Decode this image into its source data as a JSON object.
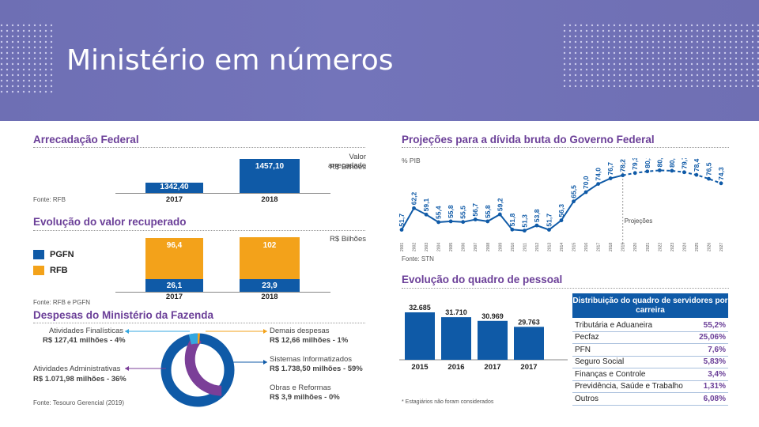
{
  "header": {
    "title": "Ministério em números"
  },
  "arrecadacao": {
    "title": "Arrecadação Federal",
    "legend_title": "Valor arrecadado",
    "legend_unit": "R$ Bilhões",
    "bars": [
      {
        "year": "2017",
        "label": "1342,40",
        "value": 1342.4
      },
      {
        "year": "2018",
        "label": "1457,10",
        "value": 1457.1
      }
    ],
    "source": "Fonte: RFB"
  },
  "recuperado": {
    "title": "Evolução do valor recuperado",
    "unit": "R$ Bilhões",
    "legend": [
      {
        "name": "PGFN",
        "color": "#0f5aa7"
      },
      {
        "name": "RFB",
        "color": "#f3a21a"
      }
    ],
    "bars": [
      {
        "year": "2017",
        "pgfn_label": "26,1",
        "pgfn": 26.1,
        "rfb_label": "96,4",
        "rfb": 96.4
      },
      {
        "year": "2018",
        "pgfn_label": "23,9",
        "pgfn": 23.9,
        "rfb_label": "102",
        "rfb": 102
      }
    ],
    "source": "Fonte: RFB e PGFN"
  },
  "despesas": {
    "title": "Despesas do Ministério da Fazenda",
    "items": [
      {
        "name": "Atividades Finalísticas",
        "value": "R$ 127,41 milhões - 4%",
        "share": 4
      },
      {
        "name": "Atividades Administrativas",
        "value": "R$ 1.071,98 milhões - 36%",
        "share": 36
      },
      {
        "name": "Demais despesas",
        "value": "R$ 12,66 milhões - 1%",
        "share": 1
      },
      {
        "name": "Sistemas Informatizados",
        "value": "R$ 1.738,50 milhões - 59%",
        "share": 59
      },
      {
        "name": "Obras e Reformas",
        "value": "R$ 3,9 milhões - 0%",
        "share": 0
      }
    ],
    "colors": {
      "finalisticas": "#34a7e0",
      "administrativas": "#7b3f98",
      "demais": "#f3a21a",
      "sistemas": "#0f5aa7"
    },
    "source": "Fonte: Tesouro Gerencial (2019)"
  },
  "divida": {
    "title": "Projeções para a dívida bruta do Governo Federal",
    "ylabel": "% PIB",
    "projection_label": "Projeções",
    "source": "Fonte: STN",
    "chart_data": {
      "type": "line",
      "title": "Projeções para a dívida bruta do Governo Federal",
      "ylabel": "% PIB",
      "x": [
        "2001",
        "2002",
        "2003",
        "2004",
        "2005",
        "2006",
        "2007",
        "2008",
        "2009",
        "2010",
        "2011",
        "2012",
        "2013",
        "2014",
        "2015",
        "2016",
        "2017",
        "2018",
        "2019",
        "2020",
        "2021",
        "2022",
        "2023",
        "2024",
        "2025",
        "2026",
        "2027"
      ],
      "values": [
        51.7,
        62.2,
        59.1,
        55.4,
        55.8,
        55.5,
        56.7,
        55.8,
        59.2,
        51.8,
        51.3,
        53.8,
        51.7,
        56.3,
        65.5,
        70.0,
        74.0,
        76.7,
        78.2,
        79.3,
        80.1,
        80.6,
        80.4,
        79.7,
        78.4,
        76.5,
        74.3
      ],
      "labels": [
        "51,7",
        "62,2",
        "59,1",
        "55,4",
        "55,8",
        "55,5",
        "56,7",
        "55,8",
        "59,2",
        "51,8",
        "51,3",
        "53,8",
        "51,7",
        "56,3",
        "65,5",
        "70,0",
        "74,0",
        "76,7",
        "78,2",
        "79,3",
        "80,1",
        "80,6",
        "80,4",
        "79,7",
        "78,4",
        "76,5",
        "74,3"
      ],
      "projection_start": "2019",
      "ylim": [
        45,
        85
      ]
    }
  },
  "pessoal": {
    "title": "Evolução do quadro de pessoal",
    "bars": [
      {
        "year": "2015",
        "label": "32.685",
        "value": 32685
      },
      {
        "year": "2016",
        "label": "31.710",
        "value": 31710
      },
      {
        "year": "2017",
        "label": "30.969",
        "value": 30969
      },
      {
        "year": "2017",
        "label": "29.763",
        "value": 29763
      }
    ],
    "note": "* Estagiários não foram considerados"
  },
  "distribuicao": {
    "title": "Distribuição do quadro de servidores por carreira",
    "rows": [
      {
        "name": "Tributária e Aduaneira",
        "value": "55,2%"
      },
      {
        "name": "Pecfaz",
        "value": "25,06%"
      },
      {
        "name": "PFN",
        "value": "7,6%"
      },
      {
        "name": "Seguro Social",
        "value": "5,83%"
      },
      {
        "name": "Finanças e Controle",
        "value": "3,4%"
      },
      {
        "name": "Previdência, Saúde e Trabalho",
        "value": "1,31%"
      },
      {
        "name": "Outros",
        "value": "6,08%"
      }
    ]
  }
}
